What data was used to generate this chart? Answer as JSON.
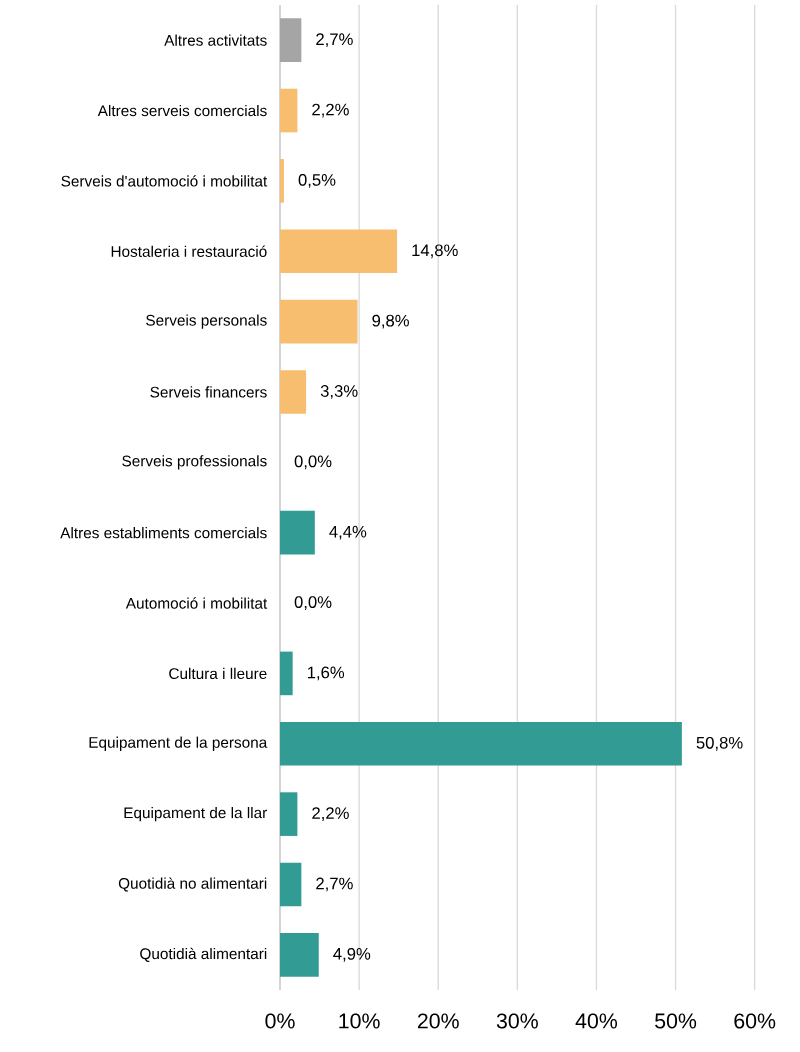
{
  "chart_data": {
    "type": "bar",
    "orientation": "horizontal",
    "categories": [
      "Altres activitats",
      "Altres serveis comercials",
      "Serveis d'automoció i mobilitat",
      "Hostaleria i restauració",
      "Serveis personals",
      "Serveis financers",
      "Serveis professionals",
      "Altres establiments comercials",
      "Automoció i mobilitat",
      "Cultura i lleure",
      "Equipament de la persona",
      "Equipament de la llar",
      "Quotidià no alimentari",
      "Quotidià alimentari"
    ],
    "values": [
      2.7,
      2.2,
      0.5,
      14.8,
      9.8,
      3.3,
      0.0,
      4.4,
      0.0,
      1.6,
      50.8,
      2.2,
      2.7,
      4.9
    ],
    "value_labels": [
      "2,7%",
      "2,2%",
      "0,5%",
      "14,8%",
      "9,8%",
      "3,3%",
      "0,0%",
      "4,4%",
      "0,0%",
      "1,6%",
      "50,8%",
      "2,2%",
      "2,7%",
      "4,9%"
    ],
    "colors": [
      "#a5a5a5",
      "#f6be6e",
      "#f6be6e",
      "#f6be6e",
      "#f6be6e",
      "#f6be6e",
      "#f6be6e",
      "#319b94",
      "#319b94",
      "#319b94",
      "#319b94",
      "#319b94",
      "#319b94",
      "#319b94"
    ],
    "xlim": [
      0,
      60
    ],
    "xticks": [
      {
        "value": 0,
        "label": "0%"
      },
      {
        "value": 10,
        "label": "10%"
      },
      {
        "value": 20,
        "label": "20%"
      },
      {
        "value": 30,
        "label": "30%"
      },
      {
        "value": 40,
        "label": "40%"
      },
      {
        "value": 50,
        "label": "50%"
      },
      {
        "value": 60,
        "label": "60%"
      }
    ],
    "grid": "x"
  }
}
